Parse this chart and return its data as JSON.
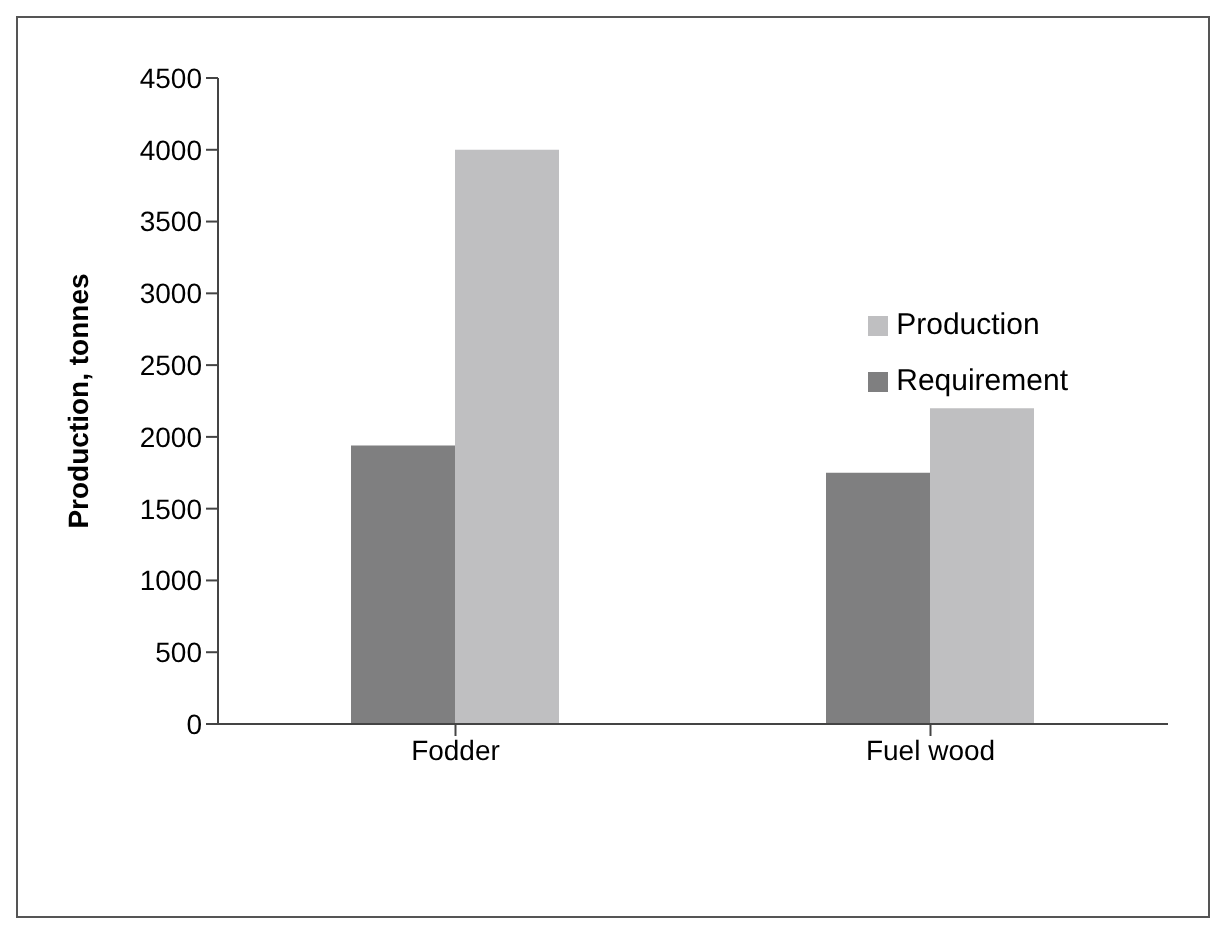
{
  "chart_data": {
    "type": "bar",
    "ylabel": "Production, tonnes",
    "categories": [
      "Fodder",
      "Fuel wood"
    ],
    "series": [
      {
        "name": "Requirement",
        "color": "#7f7f80",
        "values": [
          1940,
          1750
        ]
      },
      {
        "name": "Production",
        "color": "#bfbfc1",
        "values": [
          4000,
          2200
        ]
      }
    ],
    "ylim": [
      0,
      4500
    ],
    "yticks": [
      0,
      500,
      1000,
      1500,
      2000,
      2500,
      3000,
      3500,
      4000,
      4500
    ],
    "grid": false,
    "legend": "top right"
  }
}
